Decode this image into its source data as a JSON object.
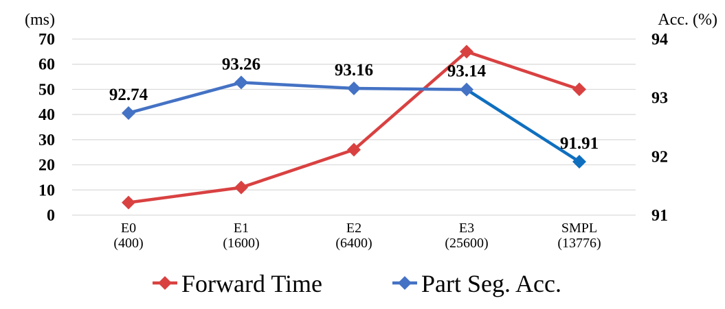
{
  "chart_data": {
    "type": "line",
    "categories": [
      {
        "line1": "E0",
        "line2": "(400)"
      },
      {
        "line1": "E1",
        "line2": "(1600)"
      },
      {
        "line1": "E2",
        "line2": "(6400)"
      },
      {
        "line1": "E3",
        "line2": "(25600)"
      },
      {
        "line1": "SMPL",
        "line2": "(13776)"
      }
    ],
    "left_axis": {
      "unit_label": "(ms)",
      "ylim": [
        0,
        70
      ],
      "ticks": [
        "0",
        "10",
        "20",
        "30",
        "40",
        "50",
        "60",
        "70"
      ]
    },
    "right_axis": {
      "unit_label": "Acc. (%)",
      "ylim": [
        91,
        94
      ],
      "ticks": [
        "91",
        "92",
        "93",
        "94"
      ]
    },
    "grid": "horizontal",
    "legend_position": "bottom",
    "series": [
      {
        "name": "Forward Time",
        "axis": "left",
        "color": "#d94141",
        "marker": "diamond",
        "values": [
          5,
          11,
          26,
          65,
          50
        ]
      },
      {
        "name": "Part Seg. Acc.",
        "axis": "right",
        "color": "#4472c4",
        "segment_colors": [
          "#4472c4",
          "#4472c4",
          "#4472c4",
          "#0f6fbf"
        ],
        "marker": "diamond",
        "values": [
          92.74,
          93.26,
          93.16,
          93.14,
          91.91
        ],
        "data_labels": [
          "92.74",
          "93.26",
          "93.16",
          "93.14",
          "91.91"
        ]
      }
    ]
  }
}
